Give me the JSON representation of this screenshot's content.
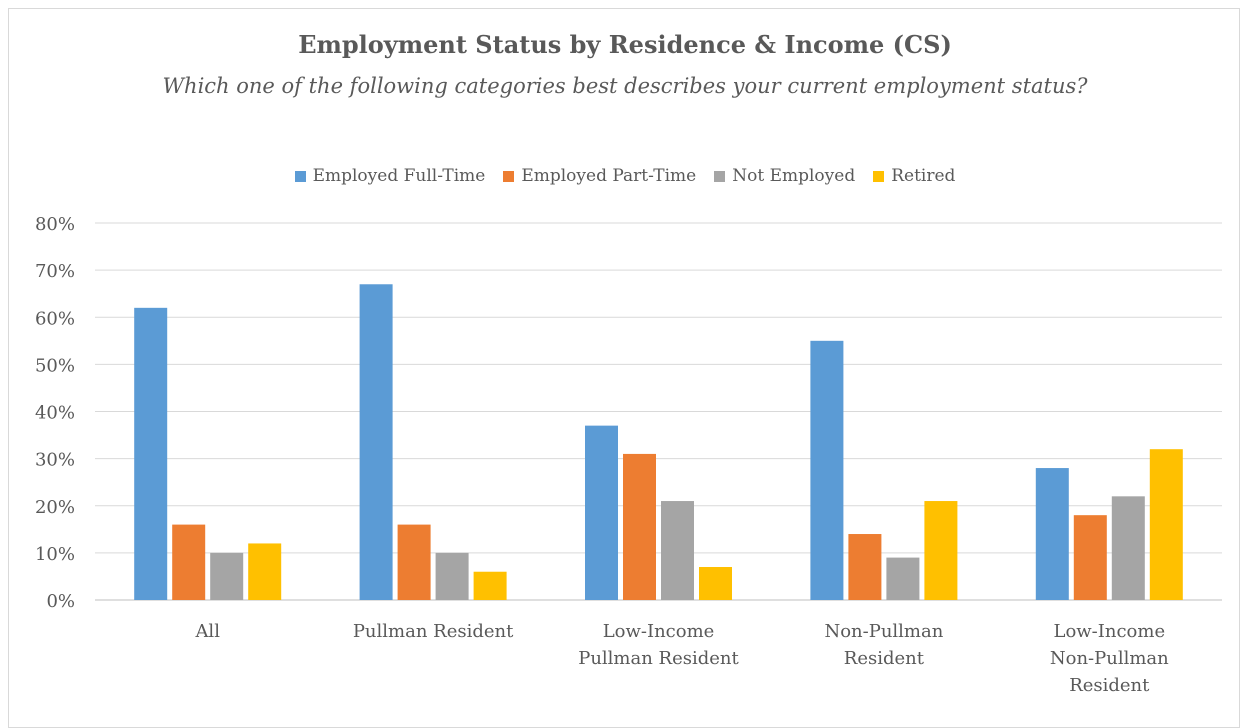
{
  "chart_data": {
    "type": "bar",
    "title": "Employment Status by Residence & Income (CS)",
    "subtitle": "Which one of the following categories best describes your current employment status?",
    "categories": [
      [
        "All"
      ],
      [
        "Pullman Resident"
      ],
      [
        "Low-Income",
        "Pullman Resident"
      ],
      [
        "Non-Pullman",
        "Resident"
      ],
      [
        "Low-Income",
        "Non-Pullman",
        "Resident"
      ]
    ],
    "series": [
      {
        "name": "Employed Full-Time",
        "color": "#5b9bd5",
        "values": [
          0.62,
          0.67,
          0.37,
          0.55,
          0.28
        ]
      },
      {
        "name": "Employed Part-Time",
        "color": "#ed7d31",
        "values": [
          0.16,
          0.16,
          0.31,
          0.14,
          0.18
        ]
      },
      {
        "name": "Not Employed",
        "color": "#a5a5a5",
        "values": [
          0.1,
          0.1,
          0.21,
          0.09,
          0.22
        ]
      },
      {
        "name": "Retired",
        "color": "#ffc000",
        "values": [
          0.12,
          0.06,
          0.07,
          0.21,
          0.32
        ]
      }
    ],
    "ylim": [
      0,
      0.8
    ],
    "yticks": [
      "0%",
      "10%",
      "20%",
      "30%",
      "40%",
      "50%",
      "60%",
      "70%",
      "80%"
    ],
    "grid": true,
    "legend_position": "top"
  }
}
